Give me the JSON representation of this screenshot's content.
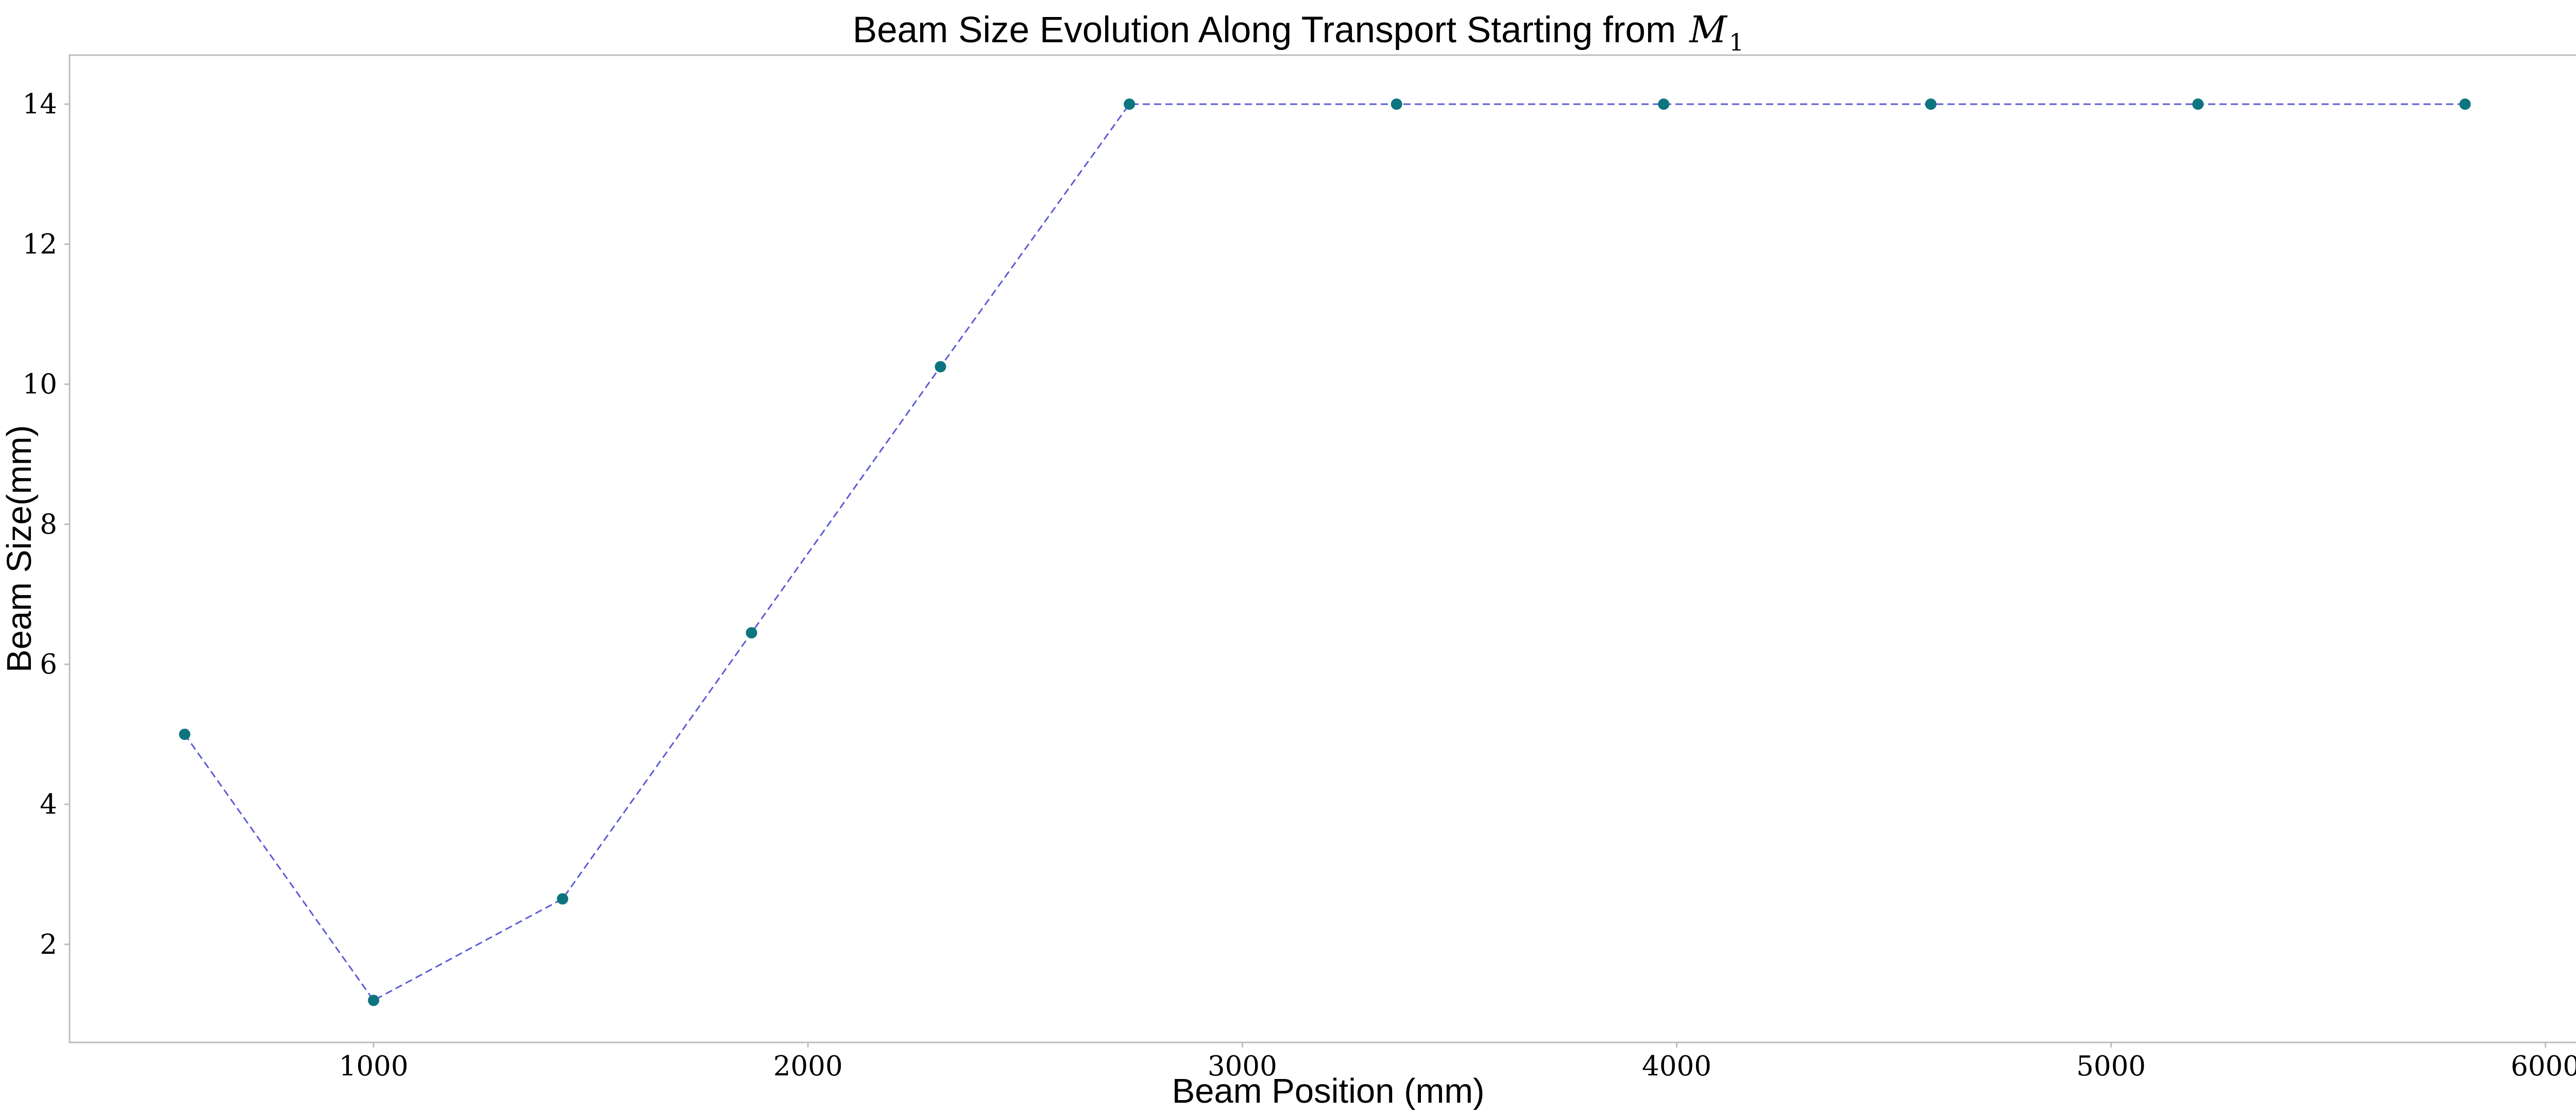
{
  "chart_data": {
    "type": "line",
    "title": "Beam Size Evolution Along Transport Starting from",
    "title_math": "M",
    "title_subscript": "1",
    "xlabel": "Beam Position (mm)",
    "ylabel": "Beam Size(mm)",
    "xlim": [
      300,
      6100
    ],
    "ylim": [
      0.6,
      14.7
    ],
    "x_ticks": [
      1000,
      2000,
      3000,
      4000,
      5000,
      6000
    ],
    "y_ticks": [
      2,
      4,
      6,
      8,
      10,
      12,
      14
    ],
    "grid": false,
    "legend": false,
    "line_color": "#5b5bd6",
    "line_style": "dashed",
    "marker_color": "#0c7580",
    "series": [
      {
        "x": [
          565,
          1000,
          1435,
          1870,
          2305,
          2740,
          3355,
          3970,
          4585,
          5200,
          5815
        ],
        "y": [
          5.0,
          1.2,
          2.65,
          6.45,
          10.25,
          14.0,
          14.0,
          14.0,
          14.0,
          14.0,
          14.0
        ]
      }
    ]
  }
}
